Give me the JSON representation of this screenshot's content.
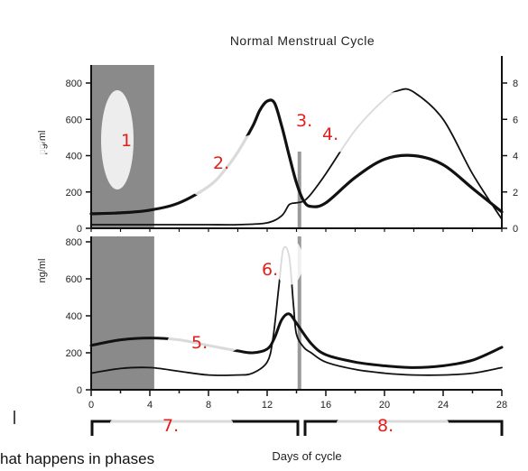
{
  "chart_data": [
    {
      "type": "line",
      "title": "Normal Menstrual Cycle",
      "xlabel": "",
      "ylabel": "pg/ml",
      "y2label": "",
      "xlim": [
        0,
        28
      ],
      "ylim": [
        0,
        850
      ],
      "y2lim": [
        0,
        8.5
      ],
      "yticks": [
        "0",
        "200",
        "400",
        "600",
        "800"
      ],
      "y2ticks": [
        "0",
        "2",
        "4",
        "6",
        "8"
      ],
      "shaded_region": [
        0,
        4.3
      ],
      "vertical_marker": 14.2,
      "series": [
        {
          "x": [
            0,
            2,
            4,
            6,
            8,
            9,
            10,
            11,
            11.5,
            12,
            12.5,
            13,
            13.5,
            14,
            14.5,
            15,
            16,
            18,
            20,
            22,
            24,
            26,
            28
          ],
          "values": [
            80,
            85,
            100,
            140,
            230,
            310,
            420,
            560,
            650,
            700,
            690,
            560,
            400,
            250,
            150,
            120,
            140,
            280,
            380,
            400,
            350,
            220,
            90
          ]
        },
        {
          "x": [
            0,
            2,
            4,
            6,
            8,
            10,
            12,
            13,
            13.5,
            14,
            14.5,
            15,
            16,
            18,
            20,
            21,
            22,
            24,
            26,
            28
          ],
          "values": [
            0.2,
            0.2,
            0.2,
            0.2,
            0.2,
            0.2,
            0.3,
            0.7,
            1.3,
            1.4,
            1.5,
            1.9,
            3.0,
            5.4,
            7.1,
            7.6,
            7.5,
            6.0,
            3.0,
            0.5
          ]
        }
      ]
    },
    {
      "type": "line",
      "title": "",
      "xlabel": "Days of cycle",
      "ylabel": "ng/ml",
      "xlim": [
        0,
        28
      ],
      "ylim": [
        0,
        800
      ],
      "xticks": [
        "0",
        "4",
        "8",
        "12",
        "16",
        "20",
        "24",
        "28"
      ],
      "yticks": [
        "0",
        "200",
        "400",
        "600",
        "800"
      ],
      "shaded_region": [
        0,
        4.3
      ],
      "vertical_marker": 14.2,
      "series": [
        {
          "x": [
            0,
            2,
            4,
            6,
            8,
            10,
            11,
            12,
            12.5,
            13,
            13.5,
            14,
            15,
            16,
            18,
            20,
            22,
            24,
            26,
            28
          ],
          "values": [
            240,
            270,
            280,
            270,
            240,
            210,
            200,
            220,
            280,
            380,
            410,
            360,
            250,
            190,
            150,
            130,
            120,
            130,
            160,
            230
          ]
        },
        {
          "x": [
            0,
            2,
            4,
            6,
            8,
            10,
            11,
            12,
            12.4,
            12.8,
            13.1,
            13.5,
            13.8,
            14,
            14.5,
            15,
            16,
            18,
            20,
            22,
            24,
            26,
            28
          ],
          "values": [
            90,
            115,
            120,
            100,
            80,
            80,
            90,
            150,
            280,
            560,
            760,
            720,
            450,
            300,
            230,
            200,
            150,
            110,
            90,
            80,
            80,
            90,
            120
          ]
        }
      ]
    }
  ],
  "annotations": [
    "1",
    "2.",
    "3.",
    "4.",
    "5.",
    "6.",
    "7.",
    "8."
  ],
  "question_fragment": "hat happens in phases"
}
